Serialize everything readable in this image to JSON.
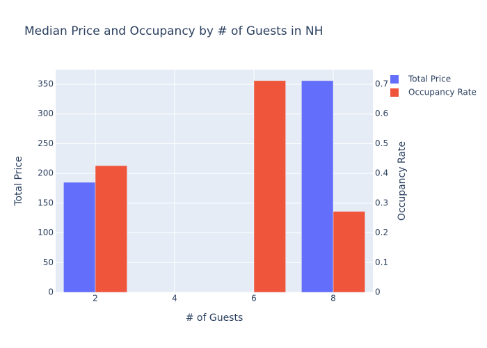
{
  "chart_data": {
    "type": "bar",
    "title": "Median Price and Occupancy by # of Guests in NH",
    "x_label": "# of Guests",
    "y_label": "Total Price",
    "y2_label": "Occupancy Rate",
    "x": [
      2,
      6,
      8
    ],
    "series": [
      {
        "name": "Total Price",
        "color": "#636efa",
        "values": [
          185,
          null,
          356
        ]
      },
      {
        "name": "Occupancy Rate",
        "color": "#ef553b",
        "axis": "y2",
        "values": [
          0.426,
          0.712,
          0.272
        ]
      }
    ],
    "xlim": [
      1,
      9
    ],
    "xticks": [
      2,
      4,
      6,
      8
    ],
    "ylim": [
      0,
      374.6
    ],
    "yticks": [
      0,
      50,
      100,
      150,
      200,
      250,
      300,
      350
    ],
    "y2lim": [
      0,
      0.749
    ],
    "y2ticks": [
      0,
      0.1,
      0.2,
      0.3,
      0.4,
      0.5,
      0.6,
      0.7
    ],
    "grid": true,
    "legend": "top-right"
  }
}
